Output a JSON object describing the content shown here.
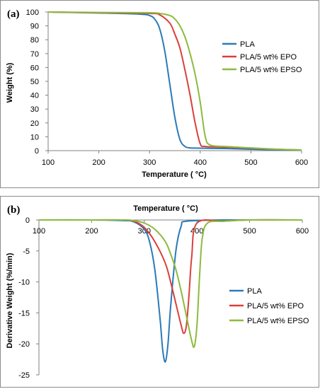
{
  "colors": {
    "PLA": "#2a7ab8",
    "EPO": "#d9403a",
    "EPSO": "#8cbb3c",
    "axis": "#808080"
  },
  "chart_data": [
    {
      "panel_label": "(a)",
      "type": "line",
      "xlabel": "Temperature ( °C)",
      "ylabel": "Weight (%)",
      "xlim": [
        100,
        600
      ],
      "ylim": [
        0,
        100
      ],
      "x_ticks": [
        "100",
        "200",
        "300",
        "400",
        "500",
        "600"
      ],
      "y_ticks": [
        "0",
        "10",
        "20",
        "30",
        "40",
        "50",
        "60",
        "70",
        "80",
        "90",
        "100"
      ],
      "grid": false,
      "legend_position": "right",
      "series": [
        {
          "name": "PLA",
          "x": [
            100,
            200,
            280,
            300,
            310,
            320,
            330,
            340,
            350,
            360,
            370,
            380,
            400,
            450,
            500,
            550,
            600
          ],
          "y": [
            100,
            99.3,
            98.5,
            97.5,
            95,
            88,
            72,
            48,
            24,
            8,
            3,
            2,
            1.8,
            1.5,
            1.0,
            0.6,
            0.4
          ]
        },
        {
          "name": "PLA/5 wt% EPO",
          "x": [
            100,
            200,
            300,
            320,
            340,
            350,
            360,
            370,
            380,
            390,
            400,
            410,
            450,
            500,
            550,
            600
          ],
          "y": [
            100,
            99.5,
            99,
            98,
            92,
            84,
            74,
            58,
            40,
            20,
            5,
            3,
            2.5,
            1.8,
            1,
            0.5
          ]
        },
        {
          "name": "PLA/5 wt% EPSO",
          "x": [
            100,
            200,
            300,
            320,
            340,
            350,
            360,
            370,
            380,
            390,
            400,
            410,
            420,
            450,
            500,
            550,
            600
          ],
          "y": [
            100,
            99.7,
            99.5,
            99,
            97.5,
            95,
            90,
            82,
            70,
            55,
            35,
            10,
            4,
            3,
            2,
            1,
            0.5
          ]
        }
      ]
    },
    {
      "panel_label": "(b)",
      "type": "line",
      "xlabel": "Temperature ( °C)",
      "ylabel": "Derivative Weight (%/min)",
      "xlim": [
        100,
        600
      ],
      "ylim": [
        -25,
        0
      ],
      "x_ticks": [
        "100",
        "200",
        "300",
        "400",
        "500",
        "600"
      ],
      "y_ticks": [
        "0",
        "-5",
        "-10",
        "-15",
        "-20",
        "-25"
      ],
      "grid": false,
      "legend_position": "right",
      "series": [
        {
          "name": "PLA",
          "x": [
            100,
            200,
            260,
            280,
            300,
            310,
            320,
            330,
            335,
            340,
            345,
            350,
            360,
            370,
            380,
            450,
            600
          ],
          "y": [
            0,
            0,
            -0.1,
            -0.3,
            -1.5,
            -3.5,
            -8,
            -16,
            -21,
            -22.9,
            -20,
            -14,
            -5,
            -1,
            -0.2,
            0,
            0
          ]
        },
        {
          "name": "PLA/5 wt% EPO",
          "x": [
            100,
            200,
            260,
            280,
            300,
            320,
            340,
            350,
            360,
            370,
            375,
            380,
            385,
            390,
            400,
            450,
            500,
            600
          ],
          "y": [
            0,
            0,
            0,
            -0.2,
            -1.2,
            -3.5,
            -7,
            -10,
            -13.5,
            -17,
            -18.3,
            -17,
            -12,
            -6,
            -0.5,
            -0.2,
            0,
            0
          ]
        },
        {
          "name": "PLA/5 wt% EPSO",
          "x": [
            100,
            200,
            260,
            280,
            300,
            320,
            340,
            350,
            360,
            370,
            380,
            390,
            395,
            400,
            405,
            410,
            420,
            450,
            500,
            600
          ],
          "y": [
            0,
            0,
            0,
            -0.1,
            -0.5,
            -1.5,
            -3.5,
            -5.5,
            -8,
            -11.5,
            -15.5,
            -19.5,
            -20.4,
            -17,
            -9,
            -3,
            -0.5,
            -0.2,
            0,
            0
          ]
        }
      ]
    }
  ]
}
